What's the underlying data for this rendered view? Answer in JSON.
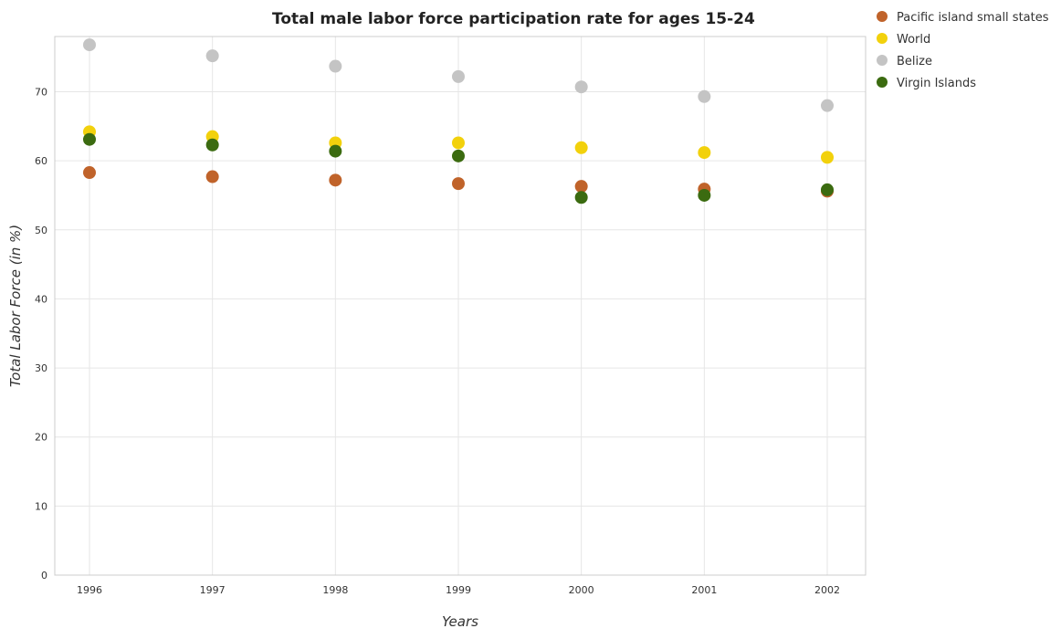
{
  "chart_data": {
    "type": "scatter",
    "title": "Total male labor force participation rate for ages 15-24",
    "xlabel": "Years",
    "ylabel": "Total Labor Force (in %)",
    "categories": [
      "1996",
      "1997",
      "1998",
      "1999",
      "2000",
      "2001",
      "2002"
    ],
    "ylim": [
      0,
      78
    ],
    "yticks": [
      0,
      10,
      20,
      30,
      40,
      50,
      60,
      70
    ],
    "grid": true,
    "legend_position": "top-right",
    "series": [
      {
        "name": "Pacific island small states",
        "color": "#c0632a",
        "values": [
          58.3,
          57.7,
          57.2,
          56.7,
          56.3,
          55.9,
          55.6
        ]
      },
      {
        "name": "World",
        "color": "#f2d10c",
        "values": [
          64.2,
          63.5,
          62.6,
          62.6,
          61.9,
          61.2,
          60.5
        ]
      },
      {
        "name": "Belize",
        "color": "#c4c4c4",
        "values": [
          76.8,
          75.2,
          73.7,
          72.2,
          70.7,
          69.3,
          68.0
        ]
      },
      {
        "name": "Virgin Islands",
        "color": "#3b6b10",
        "values": [
          63.1,
          62.3,
          61.4,
          60.7,
          54.7,
          55.0,
          55.8
        ]
      }
    ]
  }
}
